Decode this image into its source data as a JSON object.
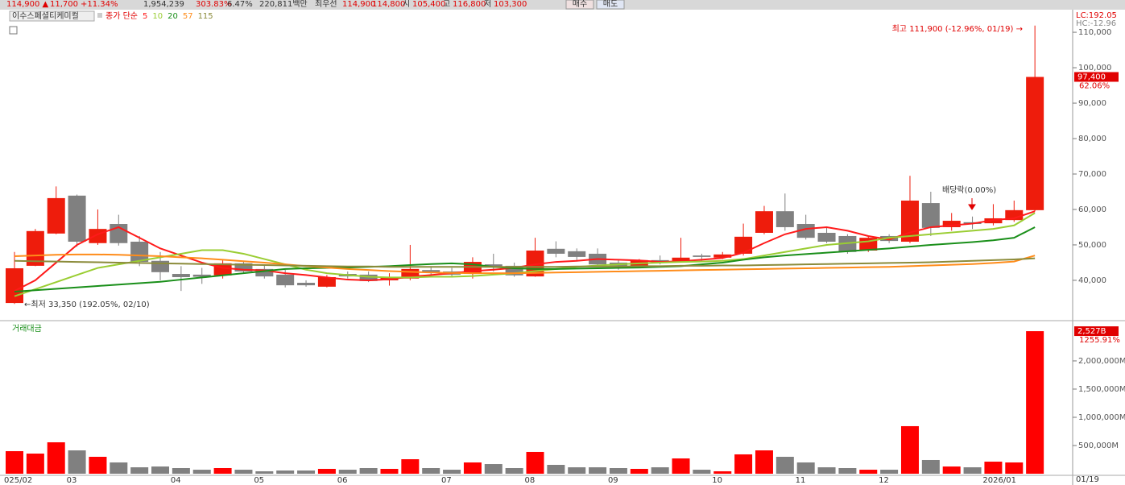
{
  "header": {
    "items": [
      "114,900 ▲",
      "11,700",
      "+11.34%",
      "1,954,239",
      "303.83%",
      "6.47%",
      "220,811백만",
      "최우선",
      "114,900",
      "114,800",
      "시",
      "105,400",
      "고",
      "116,800",
      "저",
      "103,300"
    ],
    "buttons": [
      "매수",
      "매도"
    ]
  },
  "chart_data": [
    {
      "type": "candlestick",
      "title": "이수스페셜티케미컬",
      "ma_label": "종가 단순",
      "categories": [
        "025/02",
        null,
        null,
        "03",
        null,
        null,
        null,
        null,
        "04",
        null,
        null,
        null,
        "05",
        null,
        null,
        null,
        "06",
        null,
        null,
        null,
        null,
        "07",
        null,
        null,
        null,
        "08",
        null,
        null,
        null,
        "09",
        null,
        null,
        null,
        null,
        "10",
        null,
        null,
        null,
        "11",
        null,
        null,
        null,
        "12",
        null,
        null,
        null,
        null,
        "2026/01",
        null,
        null
      ],
      "open": [
        33600,
        44100,
        53200,
        63900,
        50500,
        55900,
        50900,
        45500,
        41800,
        41600,
        41400,
        44800,
        43200,
        41600,
        39300,
        38200,
        41800,
        41600,
        40000,
        40500,
        42900,
        42500,
        41800,
        44500,
        44100,
        41100,
        48900,
        48200,
        47500,
        45000,
        43900,
        45700,
        45500,
        47000,
        46400,
        47500,
        53400,
        59500,
        55900,
        53400,
        52500,
        48400,
        52500,
        50900,
        61800,
        55000,
        56400,
        56100,
        57000,
        59800
      ],
      "high": [
        48000,
        54500,
        66500,
        64200,
        60000,
        58500,
        52500,
        48000,
        44000,
        43500,
        46000,
        45500,
        44500,
        43000,
        40000,
        41500,
        42500,
        42500,
        42000,
        50000,
        44000,
        43500,
        46500,
        47500,
        45000,
        52000,
        51000,
        49000,
        49000,
        46000,
        46000,
        47000,
        52000,
        47500,
        48000,
        56000,
        61000,
        64500,
        58500,
        55000,
        53000,
        52500,
        53000,
        69500,
        65000,
        59000,
        58000,
        61500,
        62500,
        111900
      ],
      "low": [
        33350,
        44000,
        53000,
        49500,
        50000,
        49800,
        44000,
        40000,
        37000,
        39000,
        40500,
        42000,
        40500,
        38000,
        38200,
        38000,
        40500,
        39500,
        38500,
        40000,
        41500,
        41000,
        40500,
        42500,
        41000,
        41000,
        46500,
        45500,
        44000,
        43000,
        43500,
        44500,
        45000,
        45500,
        46000,
        47000,
        53000,
        54000,
        51500,
        50500,
        47500,
        48000,
        50500,
        50500,
        52500,
        54000,
        54500,
        55500,
        56500,
        59500
      ],
      "close": [
        43400,
        53900,
        63200,
        50900,
        54500,
        50500,
        45200,
        42300,
        40900,
        41000,
        44800,
        42500,
        41100,
        38600,
        38600,
        40900,
        41100,
        39800,
        40900,
        43200,
        42300,
        41600,
        45200,
        43600,
        41400,
        48400,
        47500,
        46600,
        44500,
        44100,
        45700,
        45000,
        46400,
        46600,
        47300,
        52300,
        59500,
        55000,
        52000,
        50900,
        48000,
        52000,
        51100,
        62500,
        54800,
        56800,
        55900,
        57500,
        59800,
        97400
      ],
      "up_color": "#ee1c0c",
      "down_color": "#808080",
      "series": [
        {
          "name": "5",
          "color": "#ff1a1a",
          "values": [
            37000,
            40000,
            45000,
            50000,
            53000,
            55000,
            52000,
            49000,
            47000,
            45000,
            43500,
            43000,
            42800,
            42000,
            41500,
            40800,
            40200,
            40000,
            40300,
            41000,
            41500,
            42000,
            42600,
            43000,
            43500,
            44500,
            45200,
            45500,
            46000,
            45800,
            45600,
            45200,
            45400,
            45800,
            46300,
            47800,
            50500,
            53000,
            54500,
            55000,
            54000,
            52500,
            51500,
            53500,
            55000,
            55500,
            56000,
            57000,
            57500,
            59500
          ]
        },
        {
          "name": "10",
          "color": "#9acd32",
          "values": [
            35500,
            37500,
            39500,
            41500,
            43500,
            44500,
            45500,
            46500,
            47500,
            48500,
            48500,
            47500,
            46000,
            44500,
            43000,
            42000,
            41500,
            41000,
            40800,
            40800,
            41000,
            41000,
            41200,
            41600,
            42000,
            42600,
            43200,
            43800,
            44200,
            44500,
            44800,
            45000,
            45200,
            45300,
            45500,
            46000,
            47000,
            48000,
            49000,
            50000,
            50500,
            51000,
            52000,
            52500,
            53000,
            53500,
            54000,
            54500,
            55500,
            59000
          ]
        },
        {
          "name": "20",
          "color": "#1a8f1a",
          "values": [
            36800,
            37200,
            37600,
            38000,
            38400,
            38800,
            39200,
            39600,
            40200,
            40800,
            41400,
            42000,
            42600,
            43200,
            43400,
            43500,
            43600,
            43800,
            44000,
            44300,
            44600,
            44800,
            44500,
            43800,
            43400,
            43200,
            43200,
            43300,
            43400,
            43500,
            43600,
            43800,
            44000,
            44500,
            45000,
            45800,
            46500,
            47000,
            47400,
            47800,
            48200,
            48600,
            49000,
            49500,
            50000,
            50400,
            50800,
            51300,
            52000,
            55000
          ]
        },
        {
          "name": "57",
          "color": "#ff8c1a",
          "values": [
            46800,
            47000,
            47200,
            47300,
            47300,
            47200,
            47000,
            46800,
            46500,
            46200,
            45800,
            45400,
            45000,
            44500,
            44000,
            43600,
            43200,
            42900,
            42600,
            42400,
            42200,
            42100,
            42000,
            42000,
            42000,
            42100,
            42200,
            42300,
            42400,
            42500,
            42600,
            42700,
            42800,
            42900,
            43000,
            43100,
            43200,
            43300,
            43400,
            43500,
            43600,
            43700,
            43800,
            44000,
            44200,
            44400,
            44600,
            44900,
            45300,
            47000
          ]
        },
        {
          "name": "115",
          "color": "#8b8b3a",
          "values": [
            45500,
            45400,
            45300,
            45200,
            45100,
            45000,
            44900,
            44800,
            44700,
            44600,
            44500,
            44400,
            44300,
            44200,
            44100,
            44000,
            43900,
            43900,
            43800,
            43800,
            43800,
            43800,
            43800,
            43800,
            43800,
            43800,
            43800,
            43900,
            43900,
            43900,
            44000,
            44000,
            44100,
            44100,
            44200,
            44200,
            44300,
            44400,
            44500,
            44600,
            44700,
            44800,
            44900,
            45000,
            45100,
            45300,
            45500,
            45700,
            45900,
            46200
          ]
        }
      ],
      "ylim": [
        29300,
        115700
      ],
      "yticks": [
        {
          "value": 40000,
          "label": "40,000"
        },
        {
          "value": 50000,
          "label": "50,000"
        },
        {
          "value": 60000,
          "label": "60,000"
        },
        {
          "value": 70000,
          "label": "70,000"
        },
        {
          "value": 80000,
          "label": "80,000"
        },
        {
          "value": 90000,
          "label": "90,000"
        },
        {
          "value": 100000,
          "label": "100,000"
        },
        {
          "value": 110000,
          "label": "110,000"
        }
      ],
      "last_label": "97,400",
      "last_pct": "62.06%",
      "lc": "LC:192.05",
      "hc": "HC:-12.96",
      "annotations": [
        "최고 111,900 (-12.96%, 01/19) →",
        "←최저 33,350 (192.05%, 02/10)",
        "배당락(0.00%)"
      ],
      "date_label": "01/19"
    },
    {
      "type": "bar",
      "title": "거래대금",
      "values": [
        400000,
        357000,
        557000,
        414000,
        300000,
        200000,
        114000,
        128000,
        100000,
        71000,
        100000,
        71000,
        43000,
        57000,
        57000,
        86000,
        71000,
        100000,
        86000,
        257000,
        100000,
        71000,
        200000,
        171000,
        100000,
        386000,
        157000,
        114000,
        114000,
        100000,
        86000,
        114000,
        271000,
        71000,
        43000,
        343000,
        414000,
        300000,
        200000,
        114000,
        100000,
        71000,
        71000,
        843000,
        243000,
        128000,
        114000,
        214000,
        200000,
        2527000
      ],
      "up_color": "#ff0000",
      "down_color": "#808080",
      "ylim": [
        0,
        2685000
      ],
      "yticks": [
        {
          "value": 500000,
          "label": "500,000M"
        },
        {
          "value": 1000000,
          "label": "1,000,000M"
        },
        {
          "value": 1500000,
          "label": "1,500,000M"
        },
        {
          "value": 2000000,
          "label": "2,000,000M"
        }
      ],
      "last_label": "2,527B",
      "last_pct": "1255.91%"
    }
  ]
}
